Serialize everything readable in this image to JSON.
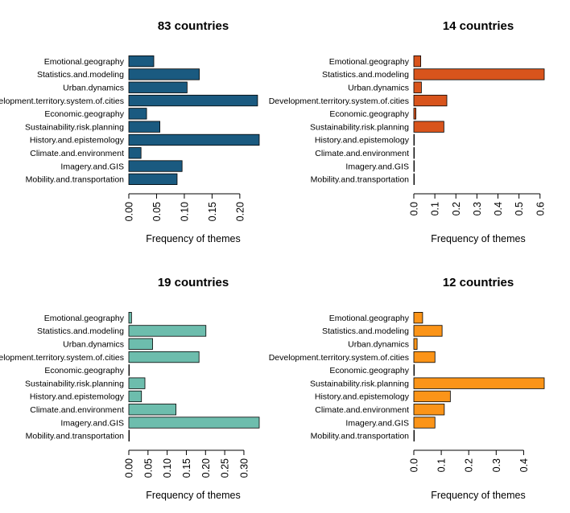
{
  "chart_data": [
    {
      "type": "bar",
      "orientation": "horizontal",
      "title": "83 countries",
      "xlabel": "Frequency of themes",
      "ylabel": "",
      "color": "#1a5a80",
      "categories": [
        "Emotional.geography",
        "Statistics.and.modeling",
        "Urban.dynamics",
        "Development.territory.system.of.cities",
        "Economic.geography",
        "Sustainability.risk.planning",
        "History.and.epistemology",
        "Climate.and.environment",
        "Imagery.and.GIS",
        "Mobility.and.transportation"
      ],
      "values": [
        0.045,
        0.127,
        0.105,
        0.232,
        0.032,
        0.056,
        0.235,
        0.022,
        0.096,
        0.087
      ],
      "xlim": [
        0,
        0.235
      ],
      "ticks": [
        0.0,
        0.05,
        0.1,
        0.15,
        0.2
      ],
      "tick_labels": [
        "0.00",
        "0.05",
        "0.10",
        "0.15",
        "0.20"
      ]
    },
    {
      "type": "bar",
      "orientation": "horizontal",
      "title": "14 countries",
      "xlabel": "Frequency of themes",
      "ylabel": "",
      "color": "#d8541c",
      "categories": [
        "Emotional.geography",
        "Statistics.and.modeling",
        "Urban.dynamics",
        "Development.territory.system.of.cities",
        "Economic.geography",
        "Sustainability.risk.planning",
        "History.and.epistemology",
        "Climate.and.environment",
        "Imagery.and.GIS",
        "Mobility.and.transportation"
      ],
      "values": [
        0.033,
        0.62,
        0.036,
        0.157,
        0.01,
        0.143,
        0.002,
        0.002,
        0.002,
        0.002
      ],
      "xlim": [
        0,
        0.62
      ],
      "ticks": [
        0.0,
        0.1,
        0.2,
        0.3,
        0.4,
        0.5,
        0.6
      ],
      "tick_labels": [
        "0.0",
        "0.1",
        "0.2",
        "0.3",
        "0.4",
        "0.5",
        "0.6"
      ]
    },
    {
      "type": "bar",
      "orientation": "horizontal",
      "title": "19 countries",
      "xlabel": "Frequency of themes",
      "ylabel": "",
      "color": "#6dbdad",
      "categories": [
        "Emotional.geography",
        "Statistics.and.modeling",
        "Urban.dynamics",
        "Development.territory.system.of.cities",
        "Economic.geography",
        "Sustainability.risk.planning",
        "History.and.epistemology",
        "Climate.and.environment",
        "Imagery.and.GIS",
        "Mobility.and.transportation"
      ],
      "values": [
        0.007,
        0.201,
        0.062,
        0.183,
        0.001,
        0.042,
        0.033,
        0.123,
        0.34,
        0.001
      ],
      "xlim": [
        0,
        0.34
      ],
      "ticks": [
        0.0,
        0.05,
        0.1,
        0.15,
        0.2,
        0.25,
        0.3
      ],
      "tick_labels": [
        "0.00",
        "0.05",
        "0.10",
        "0.15",
        "0.20",
        "0.25",
        "0.30"
      ]
    },
    {
      "type": "bar",
      "orientation": "horizontal",
      "title": "12 countries",
      "xlabel": "Frequency of themes",
      "ylabel": "",
      "color": "#fb9418",
      "categories": [
        "Emotional.geography",
        "Statistics.and.modeling",
        "Urban.dynamics",
        "Development.territory.system.of.cities",
        "Economic.geography",
        "Sustainability.risk.planning",
        "History.and.epistemology",
        "Climate.and.environment",
        "Imagery.and.GIS",
        "Mobility.and.transportation"
      ],
      "values": [
        0.032,
        0.103,
        0.012,
        0.077,
        0.001,
        0.475,
        0.133,
        0.111,
        0.077,
        0.001
      ],
      "xlim": [
        0,
        0.475
      ],
      "ticks": [
        0.0,
        0.1,
        0.2,
        0.3,
        0.4
      ],
      "tick_labels": [
        "0.0",
        "0.1",
        "0.2",
        "0.3",
        "0.4"
      ]
    }
  ]
}
